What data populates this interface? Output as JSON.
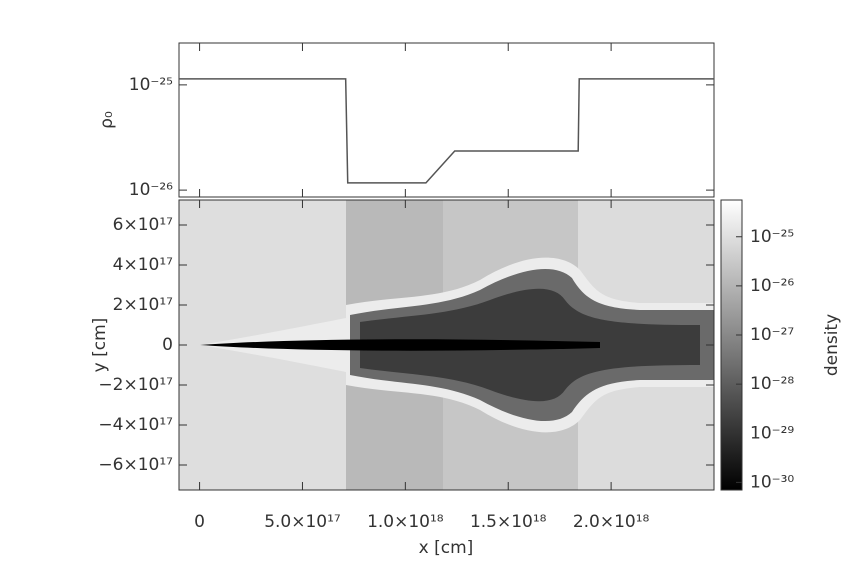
{
  "chart_data": [
    {
      "type": "line",
      "ylabel": "ρ₀",
      "log_y": true,
      "color": "#555555",
      "xlim": [
        -1e+17,
        2.5e+18
      ],
      "ylim": [
        8.6e-27,
        2.5e-25
      ],
      "yticks": [
        {
          "value": 1e-25,
          "label": "10⁻²⁵"
        },
        {
          "value": 1e-26,
          "label": "10⁻²⁶"
        }
      ],
      "x": [
        -1e+17,
        7.1e+17,
        7.2e+17,
        1.1e+18,
        1.24e+18,
        1.84e+18,
        1.845e+18,
        2.5e+18
      ],
      "values": [
        1.14e-25,
        1.14e-25,
        1.17e-26,
        1.17e-26,
        2.35e-26,
        2.35e-26,
        1.14e-25,
        1.14e-25
      ]
    },
    {
      "type": "image",
      "xlabel": "x [cm]",
      "ylabel": "y [cm]",
      "xlim": [
        -1e+17,
        2.5e+18
      ],
      "ylim": [
        -7.25e+17,
        7.25e+17
      ],
      "xticks": [
        0,
        {
          "value": 5e+17,
          "label": "5.0×10¹⁷"
        },
        {
          "value": 1e+18,
          "label": "1.0×10¹⁸"
        },
        {
          "value": 1.5e+18,
          "label": "1.5×10¹⁸"
        },
        {
          "value": 2e+18,
          "label": "2.0×10¹⁸"
        }
      ],
      "yticks": [
        {
          "value": 6e+17,
          "label": "6×10¹⁷"
        },
        {
          "value": 4e+17,
          "label": "4×10¹⁷"
        },
        {
          "value": 2e+17,
          "label": "2×10¹⁷"
        },
        0,
        {
          "value": -2e+17,
          "label": "−2×10¹⁷"
        },
        {
          "value": -4e+17,
          "label": "−4×10¹⁷"
        },
        {
          "value": -6e+17,
          "label": "−6×10¹⁷"
        }
      ],
      "colorbar": {
        "label": "density",
        "log": true,
        "lim": [
          7e-31,
          5.6e-25
        ],
        "ticks": [
          {
            "value": 1e-25,
            "label": "10⁻²⁵"
          },
          {
            "value": 1e-26,
            "label": "10⁻²⁶"
          },
          {
            "value": 1e-27,
            "label": "10⁻²⁷"
          },
          {
            "value": 1e-28,
            "label": "10⁻²⁸"
          },
          {
            "value": 1e-29,
            "label": "10⁻²⁹"
          },
          {
            "value": 1e-30,
            "label": "10⁻³⁰"
          }
        ]
      }
    }
  ]
}
